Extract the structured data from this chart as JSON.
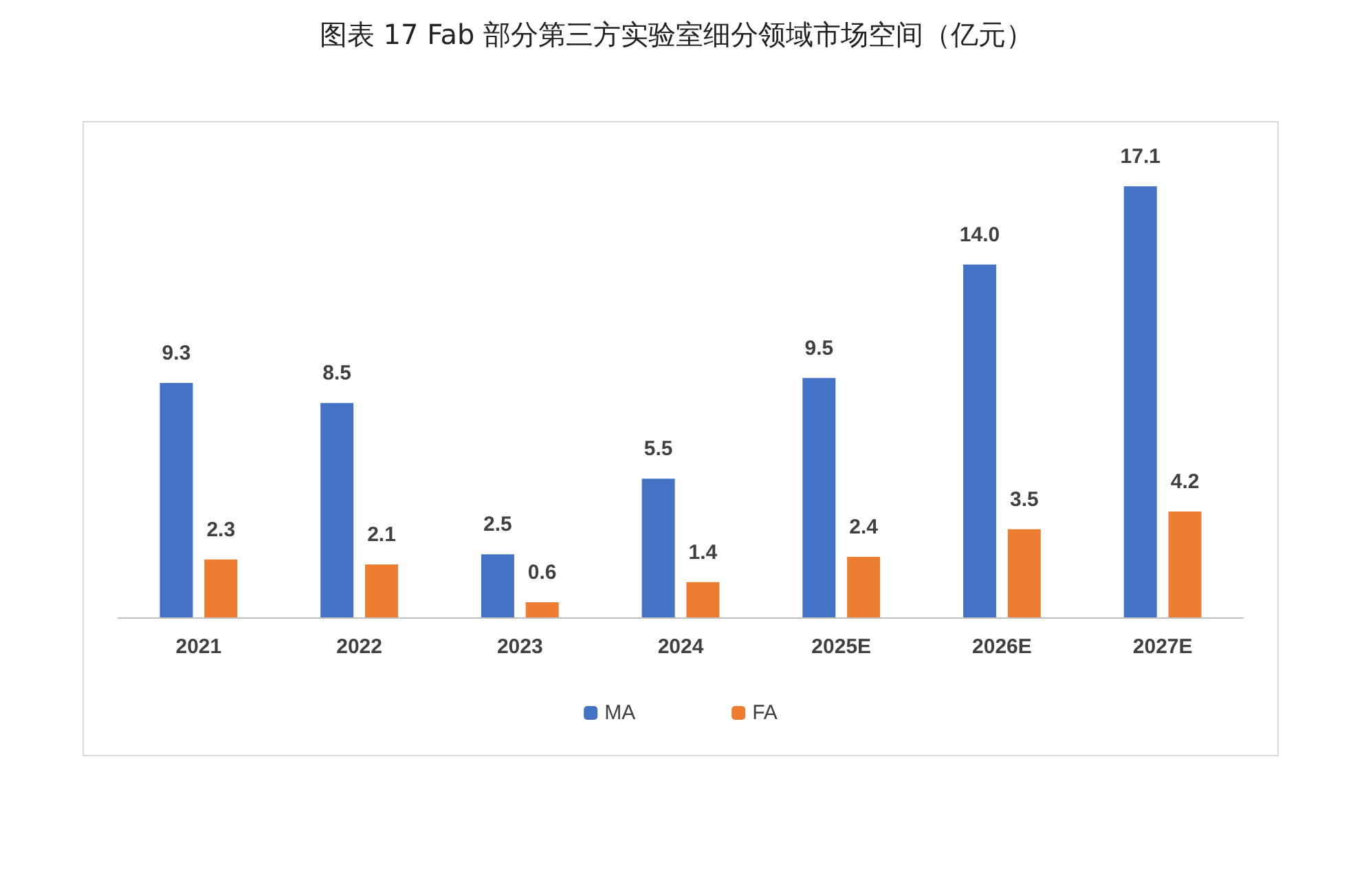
{
  "chart_data": {
    "type": "bar",
    "title": "图表  17 Fab 部分第三方实验室细分领域市场空间（亿元）",
    "categories": [
      "2021",
      "2022",
      "2023",
      "2024",
      "2025E",
      "2026E",
      "2027E"
    ],
    "series": [
      {
        "name": "MA",
        "color": "#4472c4",
        "values": [
          9.3,
          8.5,
          2.5,
          5.5,
          9.5,
          14.0,
          17.1
        ],
        "value_labels": [
          "9.3",
          "8.5",
          "2.5",
          "5.5",
          "9.5",
          "14.0",
          "17.1"
        ]
      },
      {
        "name": "FA",
        "color": "#ed7d31",
        "values": [
          2.3,
          2.1,
          0.6,
          1.4,
          2.4,
          3.5,
          4.2
        ],
        "value_labels": [
          "2.3",
          "2.1",
          "0.6",
          "1.4",
          "2.4",
          "3.5",
          "4.2"
        ]
      }
    ],
    "legend": "bottom",
    "grid": false
  }
}
